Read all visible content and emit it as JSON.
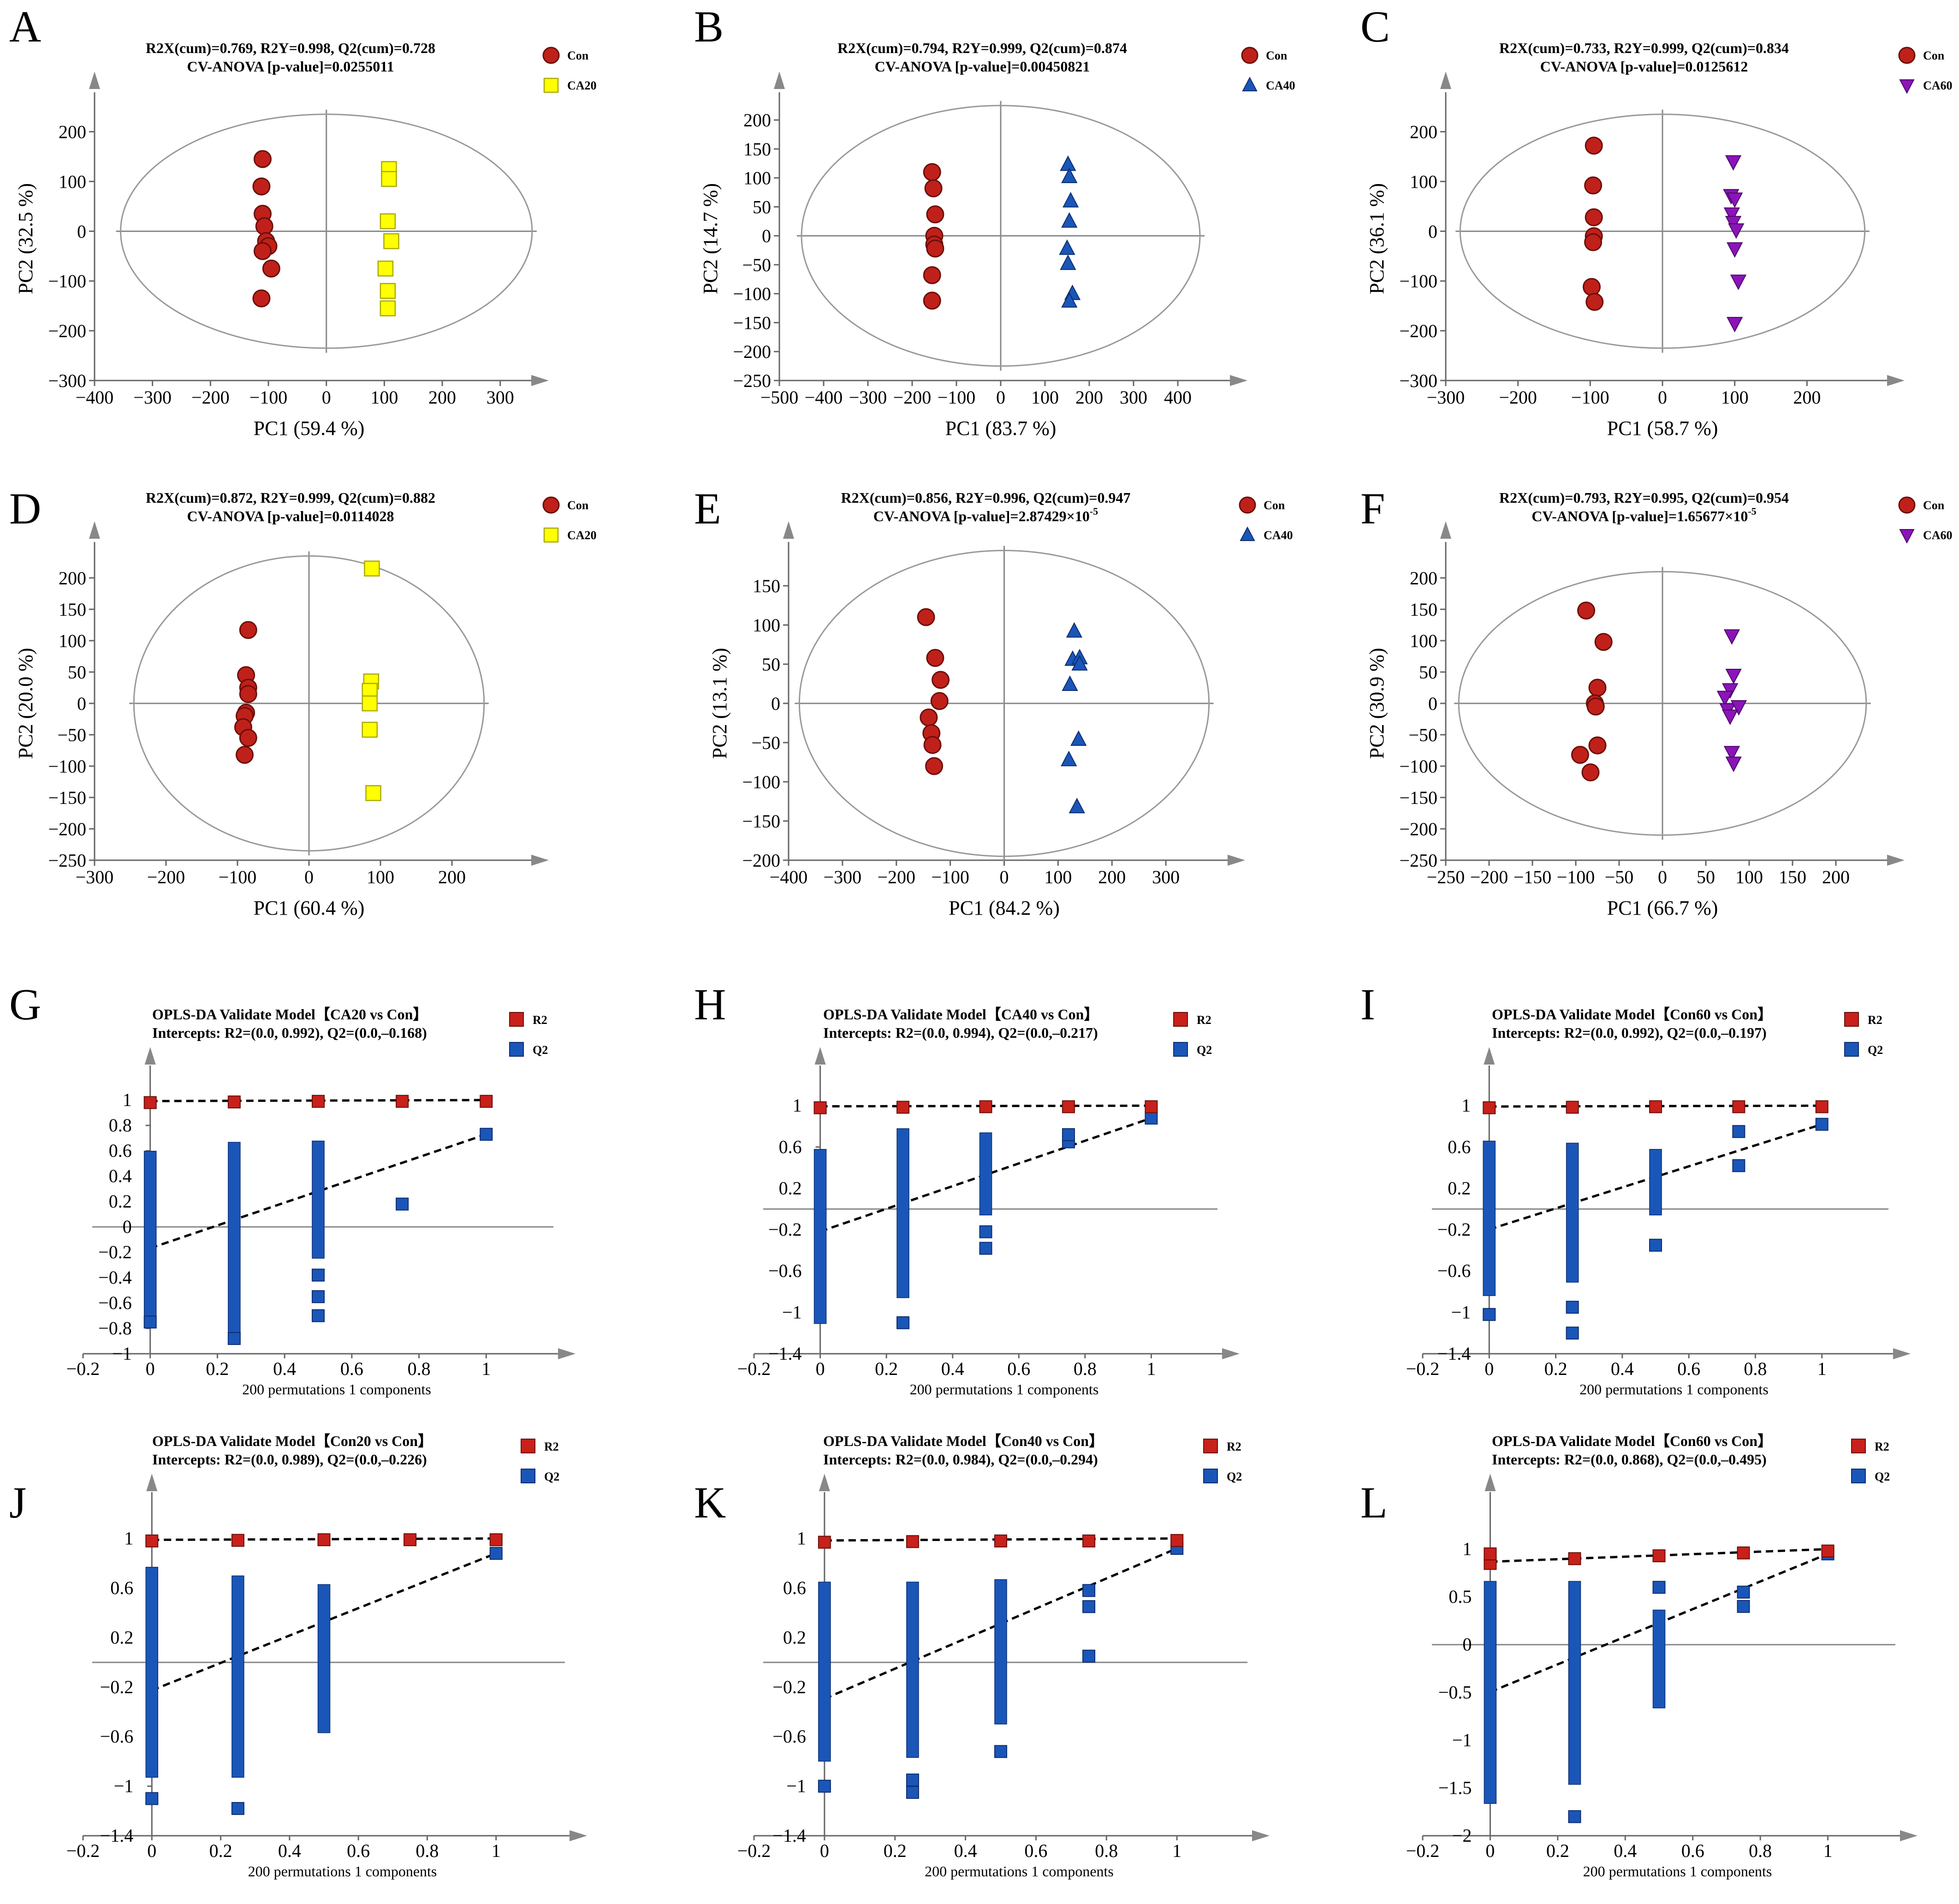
{
  "figure_title": "",
  "colors": {
    "con": "#c0201a",
    "ca20": "#ffff00",
    "ca40": "#1a56b8",
    "ca60": "#8b14b8",
    "r2": "#c8201a",
    "q2": "#1a56b8"
  },
  "chart_data": [
    {
      "panel": "A",
      "type": "scatter",
      "header1": "R2X(cum)=0.769, R2Y=0.998, Q2(cum)=0.728",
      "header2": "CV-ANOVA [p-value]=0.0255011",
      "xlabel": "PC1 (59.4 %)",
      "ylabel": "PC2 (32.5 %)",
      "xlim": [
        -400,
        340
      ],
      "ylim": [
        -300,
        270
      ],
      "xticks": [
        -400,
        -300,
        -200,
        -100,
        0,
        100,
        200,
        300
      ],
      "yticks": [
        -300,
        -200,
        -100,
        0,
        100,
        200
      ],
      "ellipse": [
        355,
        235
      ],
      "series": [
        {
          "name": "Con",
          "marker": "circle",
          "color": "#c0201a",
          "x": [
            -110,
            -112,
            -110,
            -107,
            -104,
            -100,
            -110,
            -95,
            -112
          ],
          "y": [
            145,
            90,
            35,
            10,
            -20,
            -30,
            -40,
            -75,
            -135
          ]
        },
        {
          "name": "CA20",
          "marker": "square",
          "color": "#ffff00",
          "x": [
            108,
            108,
            106,
            112,
            102,
            106,
            106
          ],
          "y": [
            125,
            105,
            20,
            -20,
            -75,
            -120,
            -155
          ]
        }
      ]
    },
    {
      "panel": "B",
      "type": "scatter",
      "header1": "R2X(cum)=0.794, R2Y=0.999, Q2(cum)=0.874",
      "header2": "CV-ANOVA [p-value]=0.00450821",
      "xlabel": "PC1 (83.7 %)",
      "ylabel": "PC2 (14.7 %)",
      "xlim": [
        -500,
        500
      ],
      "ylim": [
        -250,
        240
      ],
      "xticks": [
        -500,
        -400,
        -300,
        -200,
        -100,
        0,
        100,
        200,
        300,
        400
      ],
      "yticks": [
        -250,
        -200,
        -150,
        -100,
        -50,
        0,
        50,
        100,
        150,
        200
      ],
      "ellipse": [
        450,
        225
      ],
      "series": [
        {
          "name": "Con",
          "marker": "circle",
          "color": "#c0201a",
          "x": [
            -155,
            -152,
            -148,
            -150,
            -150,
            -148,
            -155,
            -155
          ],
          "y": [
            110,
            82,
            37,
            0,
            -15,
            -22,
            -68,
            -112
          ]
        },
        {
          "name": "CA40",
          "marker": "triangle",
          "color": "#1a56b8",
          "x": [
            152,
            155,
            158,
            155,
            150,
            152,
            162,
            155
          ],
          "y": [
            123,
            102,
            60,
            25,
            -22,
            -48,
            -100,
            -113
          ]
        }
      ]
    },
    {
      "panel": "C",
      "type": "scatter",
      "header1": "R2X(cum)=0.733, R2Y=0.999, Q2(cum)=0.834",
      "header2": "CV-ANOVA [p-value]=0.0125612",
      "xlabel": "PC1 (58.7 %)",
      "ylabel": "PC2 (36.1 %)",
      "xlim": [
        -300,
        300
      ],
      "ylim": [
        -300,
        270
      ],
      "xticks": [
        -300,
        -200,
        -100,
        0,
        100,
        200
      ],
      "yticks": [
        -300,
        -200,
        -100,
        0,
        100,
        200
      ],
      "ellipse": [
        280,
        235
      ],
      "series": [
        {
          "name": "Con",
          "marker": "circle",
          "color": "#c0201a",
          "x": [
            -95,
            -96,
            -95,
            -95,
            -96,
            -98,
            -94
          ],
          "y": [
            172,
            92,
            28,
            -10,
            -22,
            -112,
            -142
          ]
        },
        {
          "name": "CA60",
          "marker": "triangle-down",
          "color": "#8b14b8",
          "x": [
            98,
            95,
            100,
            96,
            98,
            102,
            100,
            105,
            100
          ],
          "y": [
            140,
            72,
            65,
            35,
            18,
            3,
            -35,
            -100,
            -185
          ]
        }
      ]
    },
    {
      "panel": "D",
      "type": "scatter",
      "header1": "R2X(cum)=0.872, R2Y=0.999, Q2(cum)=0.882",
      "header2": "CV-ANOVA [p-value]=0.0114028",
      "xlabel": "PC1 (60.4 %)",
      "ylabel": "PC2 (20.0 %)",
      "xlim": [
        -300,
        300
      ],
      "ylim": [
        -250,
        250
      ],
      "xticks": [
        -300,
        -200,
        -100,
        0,
        100,
        200
      ],
      "yticks": [
        -250,
        -200,
        -150,
        -100,
        -50,
        0,
        50,
        100,
        150,
        200
      ],
      "ellipse": [
        245,
        235
      ],
      "series": [
        {
          "name": "Con",
          "marker": "circle",
          "color": "#c0201a",
          "x": [
            -85,
            -88,
            -85,
            -85,
            -88,
            -90,
            -92,
            -85,
            -90
          ],
          "y": [
            117,
            45,
            25,
            15,
            -15,
            -20,
            -38,
            -55,
            -82
          ]
        },
        {
          "name": "CA20",
          "marker": "square",
          "color": "#ffff00",
          "x": [
            88,
            87,
            85,
            85,
            85,
            90
          ],
          "y": [
            215,
            35,
            20,
            0,
            -42,
            -143
          ]
        }
      ]
    },
    {
      "panel": "E",
      "type": "scatter",
      "header1": "R2X(cum)=0.856, R2Y=0.996, Q2(cum)=0.947",
      "header2": "CV-ANOVA [p-value]=2.87429×10",
      "header2_exp": "-5",
      "xlabel": "PC1 (84.2 %)",
      "ylabel": "PC2 (13.1 %)",
      "xlim": [
        -400,
        400
      ],
      "ylim": [
        -200,
        200
      ],
      "xticks": [
        -400,
        -300,
        -200,
        -100,
        0,
        100,
        200,
        300
      ],
      "yticks": [
        -200,
        -150,
        -100,
        -50,
        0,
        50,
        100,
        150
      ],
      "ellipse": [
        380,
        195
      ],
      "series": [
        {
          "name": "Con",
          "marker": "circle",
          "color": "#c0201a",
          "x": [
            -145,
            -128,
            -118,
            -120,
            -140,
            -135,
            -133,
            -130
          ],
          "y": [
            110,
            58,
            30,
            3,
            -18,
            -38,
            -53,
            -80
          ]
        },
        {
          "name": "CA40",
          "marker": "triangle",
          "color": "#1a56b8",
          "x": [
            130,
            127,
            140,
            140,
            122,
            138,
            120,
            135
          ],
          "y": [
            92,
            56,
            58,
            50,
            24,
            -46,
            -72,
            -132
          ]
        }
      ]
    },
    {
      "panel": "F",
      "type": "scatter",
      "header1": "R2X(cum)=0.793, R2Y=0.995, Q2(cum)=0.954",
      "header2": "CV-ANOVA [p-value]=1.65677×10",
      "header2_exp": "-5",
      "xlabel": "PC1 (66.7 %)",
      "ylabel": "PC2 (30.9 %)",
      "xlim": [
        -250,
        250
      ],
      "ylim": [
        -250,
        250
      ],
      "xticks": [
        -250,
        -200,
        -150,
        -100,
        -50,
        0,
        50,
        100,
        150,
        200
      ],
      "yticks": [
        -250,
        -200,
        -150,
        -100,
        -50,
        0,
        50,
        100,
        150,
        200
      ],
      "ellipse": [
        235,
        210
      ],
      "series": [
        {
          "name": "Con",
          "marker": "circle",
          "color": "#c0201a",
          "x": [
            -88,
            -68,
            -75,
            -78,
            -77,
            -75,
            -95,
            -83
          ],
          "y": [
            148,
            98,
            25,
            0,
            -5,
            -67,
            -82,
            -110
          ]
        },
        {
          "name": "CA60",
          "marker": "triangle-down",
          "color": "#8b14b8",
          "x": [
            80,
            82,
            78,
            72,
            75,
            88,
            78,
            80,
            82
          ],
          "y": [
            108,
            45,
            22,
            10,
            -10,
            -5,
            -20,
            -78,
            -95
          ]
        }
      ]
    },
    {
      "panel": "G",
      "type": "scatter",
      "title": "OPLS-DA Validate Model【CA20 vs Con】",
      "subtitle": "Intercepts: R2=(0.0, 0.992), Q2=(0.0,–0.168)",
      "xlabel": "200 permutations 1 components",
      "xlim": [
        -0.2,
        1.2
      ],
      "ylim": [
        -1.0,
        1.2
      ],
      "xticks": [
        -0.2,
        0,
        0.2,
        0.4,
        0.6,
        0.8,
        1
      ],
      "yticks": [
        -1,
        -0.8,
        -0.6,
        -0.4,
        -0.2,
        0,
        0.2,
        0.4,
        0.6,
        0.8,
        1
      ],
      "r2_x": [
        0,
        0.25,
        0.5,
        0.75,
        1
      ],
      "r2_y": [
        0.98,
        0.985,
        0.99,
        0.99,
        0.99
      ],
      "r2_intercept": 0.992,
      "q2_intercept": -0.168,
      "q2_columns": [
        [
          0,
          -0.68,
          0.55
        ],
        [
          0.25,
          -0.85,
          0.62
        ],
        [
          0.5,
          -0.2,
          0.63
        ]
      ],
      "q2_points": [
        [
          0,
          -0.75
        ],
        [
          0.25,
          -0.88
        ],
        [
          0.5,
          -0.38
        ],
        [
          0.5,
          -0.55
        ],
        [
          0.5,
          -0.7
        ],
        [
          0.75,
          0.18
        ],
        [
          1,
          0.73
        ]
      ]
    },
    {
      "panel": "H",
      "type": "scatter",
      "title": "OPLS-DA Validate Model【CA40 vs Con】",
      "subtitle": "Intercepts: R2=(0.0, 0.994), Q2=(0.0,–0.217)",
      "xlabel": "200 permutations 1 components",
      "xlim": [
        -0.2,
        1.2
      ],
      "ylim": [
        -1.4,
        1.3
      ],
      "xticks": [
        -0.2,
        0,
        0.2,
        0.4,
        0.6,
        0.8,
        1
      ],
      "yticks": [
        -1.4,
        -1,
        -0.6,
        -0.2,
        0.2,
        0.6,
        1
      ],
      "r2_x": [
        0,
        0.25,
        0.5,
        0.75,
        1
      ],
      "r2_y": [
        0.98,
        0.985,
        0.99,
        0.99,
        0.99
      ],
      "r2_intercept": 0.994,
      "q2_intercept": -0.217,
      "q2_columns": [
        [
          0,
          -1.05,
          0.52
        ],
        [
          0.25,
          -0.8,
          0.72
        ],
        [
          0.5,
          0.0,
          0.68
        ]
      ],
      "q2_points": [
        [
          0.25,
          -1.1
        ],
        [
          0.5,
          -0.22
        ],
        [
          0.5,
          -0.38
        ],
        [
          0.75,
          0.65
        ],
        [
          0.75,
          0.72
        ],
        [
          1,
          0.88
        ]
      ]
    },
    {
      "panel": "I",
      "type": "scatter",
      "title": "OPLS-DA Validate Model【Con60 vs Con】",
      "subtitle": "Intercepts: R2=(0.0, 0.992), Q2=(0.0,–0.197)",
      "xlabel": "200 permutations 1 components",
      "xlim": [
        -0.2,
        1.2
      ],
      "ylim": [
        -1.4,
        1.3
      ],
      "xticks": [
        -0.2,
        0,
        0.2,
        0.4,
        0.6,
        0.8,
        1
      ],
      "yticks": [
        -1.4,
        -1,
        -0.6,
        -0.2,
        0.2,
        0.6,
        1
      ],
      "r2_x": [
        0,
        0.25,
        0.5,
        0.75,
        1
      ],
      "r2_y": [
        0.98,
        0.985,
        0.99,
        0.99,
        0.99
      ],
      "r2_intercept": 0.992,
      "q2_intercept": -0.197,
      "q2_columns": [
        [
          0,
          -0.78,
          0.6
        ],
        [
          0.25,
          -0.65,
          0.58
        ],
        [
          0.5,
          0.0,
          0.52
        ]
      ],
      "q2_points": [
        [
          0,
          -1.02
        ],
        [
          0.25,
          -0.95
        ],
        [
          0.25,
          -1.2
        ],
        [
          0.5,
          -0.35
        ],
        [
          0.75,
          0.42
        ],
        [
          0.75,
          0.75
        ],
        [
          1,
          0.82
        ]
      ]
    },
    {
      "panel": "J",
      "type": "scatter",
      "title": "OPLS-DA Validate Model【Con20 vs Con】",
      "subtitle": "Intercepts: R2=(0.0, 0.989), Q2=(0.0,–0.226)",
      "xlabel": "200 permutations 1 components",
      "xlim": [
        -0.2,
        1.2
      ],
      "ylim": [
        -1.4,
        1.3
      ],
      "xticks": [
        -0.2,
        0,
        0.2,
        0.4,
        0.6,
        0.8,
        1
      ],
      "yticks": [
        -1.4,
        -1,
        -0.6,
        -0.2,
        0.2,
        0.6,
        1
      ],
      "r2_x": [
        0,
        0.25,
        0.5,
        0.75,
        1
      ],
      "r2_y": [
        0.98,
        0.985,
        0.99,
        0.99,
        0.99
      ],
      "r2_intercept": 0.989,
      "q2_intercept": -0.226,
      "q2_columns": [
        [
          0,
          -0.88,
          0.72
        ],
        [
          0.25,
          -0.88,
          0.65
        ],
        [
          0.5,
          -0.52,
          0.58
        ]
      ],
      "q2_points": [
        [
          0,
          -1.1
        ],
        [
          0.25,
          -1.18
        ],
        [
          1,
          0.88
        ]
      ]
    },
    {
      "panel": "K",
      "type": "scatter",
      "title": "OPLS-DA Validate Model【Con40 vs Con】",
      "subtitle": "Intercepts: R2=(0.0, 0.984), Q2=(0.0,–0.294)",
      "xlabel": "200 permutations 1 components",
      "xlim": [
        -0.2,
        1.2
      ],
      "ylim": [
        -1.4,
        1.3
      ],
      "xticks": [
        -0.2,
        0,
        0.2,
        0.4,
        0.6,
        0.8,
        1
      ],
      "yticks": [
        -1.4,
        -1,
        -0.6,
        -0.2,
        0.2,
        0.6,
        1
      ],
      "r2_x": [
        0,
        0.25,
        0.5,
        0.75,
        1
      ],
      "r2_y": [
        0.97,
        0.975,
        0.98,
        0.98,
        0.984
      ],
      "r2_intercept": 0.984,
      "q2_intercept": -0.294,
      "q2_columns": [
        [
          0,
          -0.75,
          0.6
        ],
        [
          0.25,
          -0.72,
          0.6
        ],
        [
          0.5,
          -0.45,
          0.62
        ]
      ],
      "q2_points": [
        [
          0,
          -1.0
        ],
        [
          0.25,
          -0.95
        ],
        [
          0.25,
          -1.05
        ],
        [
          0.5,
          -0.72
        ],
        [
          0.75,
          0.45
        ],
        [
          0.75,
          0.58
        ],
        [
          0.75,
          0.05
        ],
        [
          1,
          0.92
        ]
      ]
    },
    {
      "panel": "L",
      "type": "scatter",
      "title": "OPLS-DA Validate Model【Con60 vs Con】",
      "subtitle": "Intercepts: R2=(0.0, 0.868), Q2=(0.0,–0.495)",
      "xlabel": "200 permutations 1 components",
      "xlim": [
        -0.2,
        1.2
      ],
      "ylim": [
        -2.0,
        1.5
      ],
      "xticks": [
        -0.2,
        0,
        0.2,
        0.4,
        0.6,
        0.8,
        1
      ],
      "yticks": [
        -2,
        -1.5,
        -1,
        -0.5,
        0,
        0.5,
        1
      ],
      "r2_x": [
        0,
        0,
        0.25,
        0.5,
        0.75,
        1
      ],
      "r2_y": [
        0.85,
        0.95,
        0.9,
        0.93,
        0.96,
        0.98
      ],
      "r2_intercept": 0.868,
      "q2_intercept": -0.495,
      "q2_columns": [
        [
          0,
          -1.6,
          0.6
        ],
        [
          0.25,
          -1.4,
          0.6
        ],
        [
          0.5,
          -0.6,
          0.3
        ]
      ],
      "q2_points": [
        [
          0.25,
          -1.8
        ],
        [
          0.5,
          0.6
        ],
        [
          0.75,
          0.4
        ],
        [
          0.75,
          0.55
        ],
        [
          1,
          0.95
        ]
      ]
    }
  ]
}
